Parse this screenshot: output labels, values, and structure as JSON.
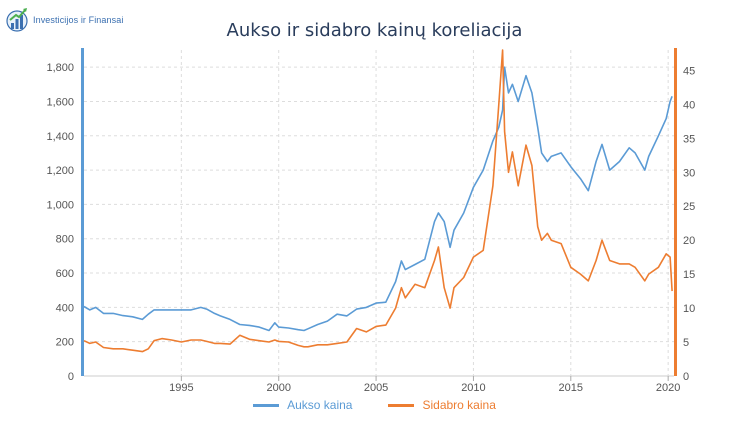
{
  "header": {
    "logo_text": "Investicijos ir Finansai",
    "logo_icon": "growth-chart-icon"
  },
  "chart_data": {
    "type": "line",
    "title": "Aukso ir sidabro kainų koreliacija",
    "xlabel": "",
    "ylabel": "",
    "xlim": [
      1990.0,
      2020.3
    ],
    "ylim_left": [
      0,
      1900
    ],
    "ylim_right": [
      0,
      48
    ],
    "x_ticks": [
      1995,
      2000,
      2005,
      2010,
      2015,
      2020
    ],
    "left_ticks": [
      0,
      200,
      400,
      600,
      800,
      1000,
      1200,
      1400,
      1600,
      1800
    ],
    "left_tick_labels": [
      "0",
      "200",
      "400",
      "600",
      "800",
      "1,000",
      "1,200",
      "1,400",
      "1,600",
      "1,800"
    ],
    "right_ticks": [
      0,
      5,
      10,
      15,
      20,
      25,
      30,
      35,
      40,
      45
    ],
    "right_tick_labels": [
      "0",
      "5",
      "10",
      "15",
      "20",
      "25",
      "30",
      "35",
      "40",
      "45"
    ],
    "grid": true,
    "legend_position": "bottom-center",
    "colors": {
      "gold": "#5b9bd5",
      "silver": "#ed7d31",
      "grid": "#dddddd",
      "title": "#2a3d5c"
    },
    "series": [
      {
        "name": "Aukso kaina",
        "axis": "left",
        "color": "#5b9bd5",
        "x": [
          1990.0,
          1990.3,
          1990.6,
          1991.0,
          1991.5,
          1992.0,
          1992.5,
          1993.0,
          1993.3,
          1993.6,
          1994.0,
          1994.5,
          1995.0,
          1995.5,
          1996.0,
          1996.3,
          1996.7,
          1997.0,
          1997.5,
          1998.0,
          1998.5,
          1999.0,
          1999.5,
          1999.8,
          2000.0,
          2000.5,
          2001.0,
          2001.3,
          2001.5,
          2002.0,
          2002.5,
          2003.0,
          2003.5,
          2004.0,
          2004.5,
          2005.0,
          2005.5,
          2006.0,
          2006.3,
          2006.5,
          2007.0,
          2007.5,
          2008.0,
          2008.2,
          2008.5,
          2008.8,
          2009.0,
          2009.5,
          2010.0,
          2010.5,
          2011.0,
          2011.3,
          2011.5,
          2011.6,
          2011.8,
          2012.0,
          2012.3,
          2012.7,
          2013.0,
          2013.3,
          2013.5,
          2013.8,
          2014.0,
          2014.5,
          2015.0,
          2015.5,
          2015.9,
          2016.3,
          2016.6,
          2017.0,
          2017.5,
          2018.0,
          2018.3,
          2018.8,
          2019.0,
          2019.5,
          2019.9,
          2020.1,
          2020.2
        ],
        "values": [
          405,
          385,
          400,
          365,
          365,
          352,
          345,
          330,
          360,
          385,
          385,
          385,
          385,
          385,
          400,
          390,
          365,
          350,
          330,
          300,
          295,
          285,
          265,
          310,
          285,
          280,
          270,
          265,
          275,
          300,
          320,
          360,
          350,
          390,
          400,
          425,
          430,
          550,
          670,
          620,
          650,
          680,
          900,
          950,
          900,
          750,
          850,
          950,
          1100,
          1200,
          1370,
          1450,
          1550,
          1800,
          1650,
          1700,
          1600,
          1750,
          1650,
          1450,
          1300,
          1250,
          1280,
          1300,
          1220,
          1150,
          1080,
          1250,
          1350,
          1200,
          1250,
          1330,
          1300,
          1200,
          1280,
          1400,
          1500,
          1600,
          1630
        ]
      },
      {
        "name": "Sidabro kaina",
        "axis": "right",
        "color": "#ed7d31",
        "x": [
          1990.0,
          1990.3,
          1990.6,
          1991.0,
          1991.5,
          1992.0,
          1992.5,
          1993.0,
          1993.3,
          1993.6,
          1994.0,
          1994.5,
          1995.0,
          1995.5,
          1996.0,
          1996.3,
          1996.7,
          1997.0,
          1997.5,
          1998.0,
          1998.5,
          1999.0,
          1999.5,
          1999.8,
          2000.0,
          2000.5,
          2001.0,
          2001.3,
          2001.5,
          2002.0,
          2002.5,
          2003.0,
          2003.5,
          2004.0,
          2004.5,
          2005.0,
          2005.5,
          2006.0,
          2006.3,
          2006.5,
          2007.0,
          2007.5,
          2008.0,
          2008.2,
          2008.5,
          2008.8,
          2009.0,
          2009.5,
          2010.0,
          2010.5,
          2011.0,
          2011.3,
          2011.5,
          2011.6,
          2011.8,
          2012.0,
          2012.3,
          2012.7,
          2013.0,
          2013.3,
          2013.5,
          2013.8,
          2014.0,
          2014.5,
          2015.0,
          2015.5,
          2015.9,
          2016.3,
          2016.6,
          2017.0,
          2017.5,
          2018.0,
          2018.3,
          2018.8,
          2019.0,
          2019.5,
          2019.9,
          2020.1,
          2020.2
        ],
        "values": [
          5.2,
          4.8,
          5.0,
          4.2,
          4.0,
          4.0,
          3.8,
          3.6,
          4.0,
          5.2,
          5.5,
          5.3,
          5.0,
          5.3,
          5.3,
          5.1,
          4.8,
          4.8,
          4.7,
          6.0,
          5.4,
          5.2,
          5.0,
          5.3,
          5.1,
          5.0,
          4.5,
          4.3,
          4.3,
          4.6,
          4.6,
          4.8,
          5.0,
          7.0,
          6.5,
          7.3,
          7.5,
          10.0,
          13.0,
          11.5,
          13.5,
          13.0,
          17.0,
          19.0,
          13.0,
          10.0,
          13.0,
          14.5,
          17.5,
          18.5,
          28.0,
          40.0,
          48.0,
          36.0,
          30.0,
          33.0,
          28.0,
          34.0,
          31.0,
          22.0,
          20.0,
          21.0,
          20.0,
          19.5,
          16.0,
          15.0,
          14.0,
          17.0,
          20.0,
          17.0,
          16.5,
          16.5,
          16.0,
          14.0,
          15.0,
          16.0,
          18.0,
          17.5,
          12.5
        ]
      }
    ]
  }
}
